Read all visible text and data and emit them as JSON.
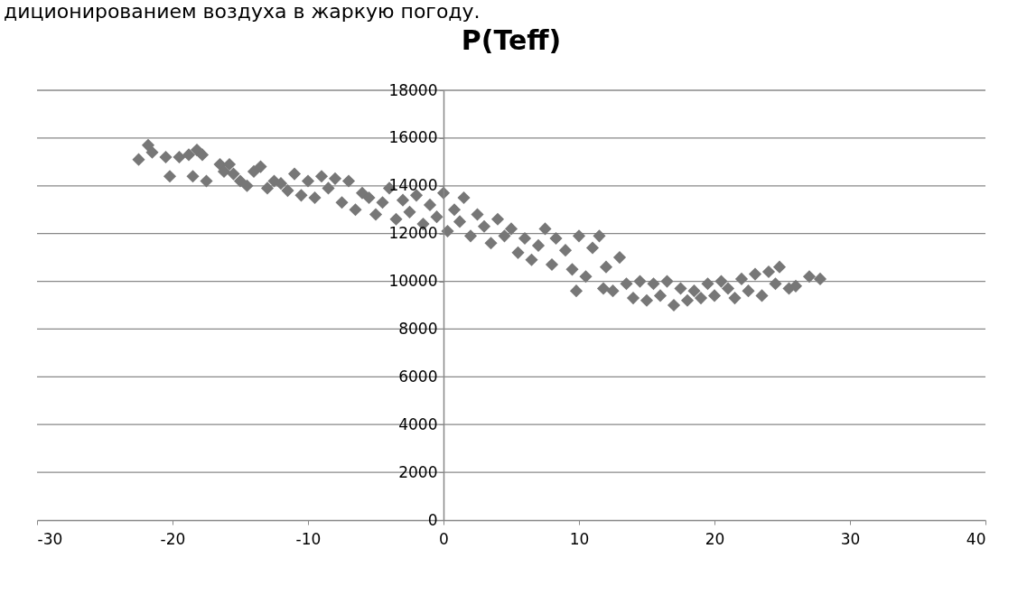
{
  "chart_data": {
    "type": "scatter",
    "title": "P(Teff)",
    "annotations": [
      "диционированием воздуха в жаркую погоду."
    ],
    "x": [
      -22.5,
      -21.8,
      -21.5,
      -20.5,
      -20.2,
      -19.5,
      -18.8,
      -18.5,
      -18.2,
      -17.8,
      -17.5,
      -16.5,
      -16.2,
      -15.8,
      -15.5,
      -15,
      -14.5,
      -14,
      -13.5,
      -13,
      -12.5,
      -12,
      -11.5,
      -11,
      -10.5,
      -10,
      -9.5,
      -9,
      -8.5,
      -8,
      -7.5,
      -7,
      -6.5,
      -6,
      -5.5,
      -5,
      -4.5,
      -4,
      -3.5,
      -3,
      -2.5,
      -2,
      -1.5,
      -1,
      -0.5,
      0,
      0.3,
      0.8,
      1.2,
      1.5,
      2,
      2.5,
      3,
      3.5,
      4,
      4.5,
      5,
      5.5,
      6,
      6.5,
      7,
      7.5,
      8,
      8.3,
      9,
      9.5,
      9.8,
      10,
      10.5,
      11,
      11.5,
      11.8,
      12,
      12.5,
      13,
      13.5,
      14,
      14.5,
      15,
      15.5,
      16,
      16.5,
      17,
      17.5,
      18,
      18.5,
      19,
      19.5,
      20,
      20.5,
      21,
      21.5,
      22,
      22.5,
      23,
      23.5,
      24,
      24.5,
      24.8,
      25.5,
      26,
      27,
      27.8
    ],
    "series": [
      {
        "color": "#777777",
        "values": [
          15100,
          15700,
          15400,
          15200,
          14400,
          15200,
          15300,
          14400,
          15500,
          15300,
          14200,
          14900,
          14600,
          14900,
          14500,
          14200,
          14000,
          14600,
          14800,
          13900,
          14200,
          14100,
          13800,
          14500,
          13600,
          14200,
          13500,
          14400,
          13900,
          14300,
          13300,
          14200,
          13000,
          13700,
          13500,
          12800,
          13300,
          13900,
          12600,
          13400,
          12900,
          13600,
          12400,
          13200,
          12700,
          13700,
          12100,
          13000,
          12500,
          13500,
          11900,
          12800,
          12300,
          11600,
          12600,
          11900,
          12200,
          11200,
          11800,
          10900,
          11500,
          12200,
          10700,
          11800,
          11300,
          10500,
          9600,
          11900,
          10200,
          11400,
          11900,
          9700,
          10600,
          9600,
          11000,
          9900,
          9300,
          10000,
          9200,
          9900,
          9400,
          10000,
          9000,
          9700,
          9200,
          9600,
          9300,
          9900,
          9400,
          10000,
          9700,
          9300,
          10100,
          9600,
          10300,
          9400,
          10400,
          9900,
          10600,
          9700,
          9800,
          10200,
          10100
        ]
      }
    ],
    "xlim": [
      -30,
      40
    ],
    "xticks": [
      -30,
      -20,
      -10,
      0,
      10,
      20,
      30,
      40
    ],
    "ylim": [
      0,
      18000
    ],
    "yticks": [
      0,
      2000,
      4000,
      6000,
      8000,
      10000,
      12000,
      14000,
      16000,
      18000
    ],
    "grid": "y",
    "marker": "diamond",
    "legend": false
  }
}
